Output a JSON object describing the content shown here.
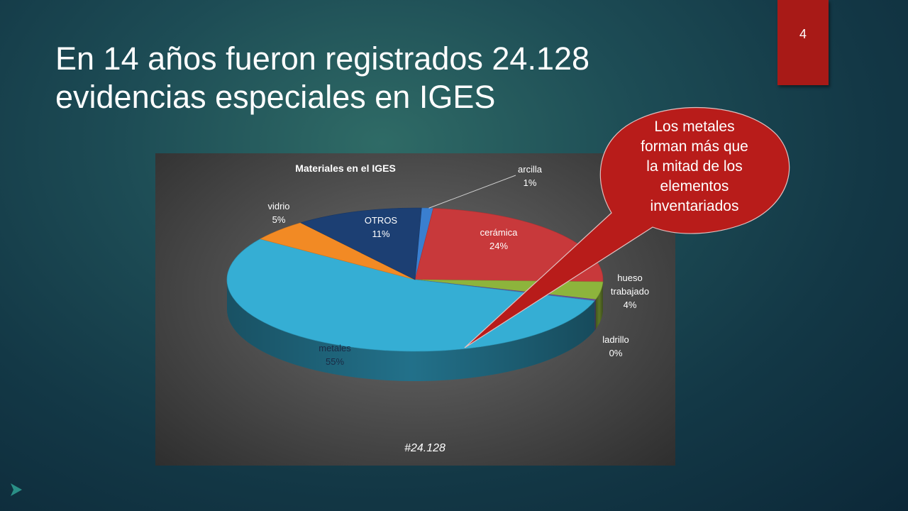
{
  "slide": {
    "title_line1": "En 14 años fueron registrados 24.128",
    "title_line2": "evidencias especiales en IGES",
    "slide_number": "4"
  },
  "callout": {
    "lines": [
      "Los metales",
      "forman más que",
      "la mitad de los",
      "elementos",
      "inventariados"
    ],
    "color": "#b81c1a"
  },
  "chart_data": {
    "type": "pie",
    "title": "Materiales  en el IGES",
    "footer": "#24.128",
    "three_d": true,
    "slices": [
      {
        "name": "arcilla",
        "percent_label": "1%",
        "value": 1,
        "color": "#3a7fd0"
      },
      {
        "name": "cerámica",
        "percent_label": "24%",
        "value": 24,
        "color": "#c8393b"
      },
      {
        "name": "hueso trabajado",
        "label_lines": [
          "hueso",
          "trabajado"
        ],
        "percent_label": "4%",
        "value": 4,
        "color": "#8db43c"
      },
      {
        "name": "ladrillo",
        "percent_label": "0%",
        "value": 0.3,
        "color": "#6b4fa0"
      },
      {
        "name": "metales",
        "percent_label": "55%",
        "value": 55,
        "color": "#35aed4"
      },
      {
        "name": "vidrio",
        "percent_label": "5%",
        "value": 5,
        "color": "#f28a24"
      },
      {
        "name": "OTROS",
        "percent_label": "11%",
        "value": 11,
        "color": "#1c3f73"
      }
    ]
  }
}
